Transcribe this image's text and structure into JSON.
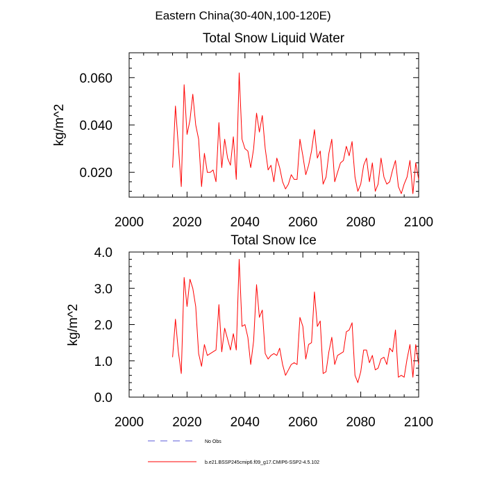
{
  "figure": {
    "main_title": "Eastern China(30-40N,100-120E)"
  },
  "chart_data": [
    {
      "type": "line",
      "title": "Total Snow Liquid Water",
      "xlabel": "",
      "ylabel": "kg/m^2",
      "xlim": [
        2000,
        2100
      ],
      "ylim": [
        0.0095,
        0.0705
      ],
      "xticks": [
        2000,
        2020,
        2040,
        2060,
        2080,
        2100
      ],
      "xtick_labels": [
        "2000",
        "2020",
        "2040",
        "2060",
        "2080",
        "2100"
      ],
      "yticks": [
        0.02,
        0.04,
        0.06
      ],
      "ytick_labels": [
        "0.020",
        "0.040",
        "0.060"
      ],
      "grid": false,
      "series": [
        {
          "name": "b.e21.BSSP245cmip6.f09_g17.CMIP6-SSP2-4.5.102",
          "color": "#ff0000",
          "x": [
            2015,
            2016,
            2017,
            2018,
            2019,
            2020,
            2021,
            2022,
            2023,
            2024,
            2025,
            2026,
            2027,
            2028,
            2029,
            2030,
            2031,
            2032,
            2033,
            2034,
            2035,
            2036,
            2037,
            2038,
            2039,
            2040,
            2041,
            2042,
            2043,
            2044,
            2045,
            2046,
            2047,
            2048,
            2049,
            2050,
            2051,
            2052,
            2053,
            2054,
            2055,
            2056,
            2057,
            2058,
            2059,
            2060,
            2061,
            2062,
            2063,
            2064,
            2065,
            2066,
            2067,
            2068,
            2069,
            2070,
            2071,
            2072,
            2073,
            2074,
            2075,
            2076,
            2077,
            2078,
            2079,
            2080,
            2081,
            2082,
            2083,
            2084,
            2085,
            2086,
            2087,
            2088,
            2089,
            2090,
            2091,
            2092,
            2093,
            2094,
            2095,
            2096,
            2097,
            2098,
            2099,
            2100
          ],
          "y": [
            0.022,
            0.048,
            0.031,
            0.014,
            0.057,
            0.036,
            0.042,
            0.053,
            0.04,
            0.034,
            0.014,
            0.028,
            0.02,
            0.02,
            0.021,
            0.016,
            0.041,
            0.022,
            0.034,
            0.026,
            0.023,
            0.035,
            0.017,
            0.062,
            0.034,
            0.03,
            0.029,
            0.022,
            0.03,
            0.045,
            0.037,
            0.044,
            0.03,
            0.021,
            0.023,
            0.016,
            0.026,
            0.022,
            0.016,
            0.013,
            0.015,
            0.019,
            0.017,
            0.017,
            0.034,
            0.027,
            0.019,
            0.023,
            0.029,
            0.038,
            0.026,
            0.029,
            0.015,
            0.018,
            0.028,
            0.034,
            0.016,
            0.02,
            0.024,
            0.025,
            0.031,
            0.027,
            0.033,
            0.018,
            0.012,
            0.015,
            0.023,
            0.026,
            0.016,
            0.024,
            0.012,
            0.015,
            0.026,
            0.018,
            0.015,
            0.016,
            0.021,
            0.025,
            0.014,
            0.011,
            0.015,
            0.018,
            0.025,
            0.011,
            0.024,
            0.017
          ]
        }
      ]
    },
    {
      "type": "line",
      "title": "Total Snow Ice",
      "xlabel": "",
      "ylabel": "kg/m^2",
      "xlim": [
        2000,
        2100
      ],
      "ylim": [
        0.0,
        4.0
      ],
      "xticks": [
        2000,
        2020,
        2040,
        2060,
        2080,
        2100
      ],
      "xtick_labels": [
        "2000",
        "2020",
        "2040",
        "2060",
        "2080",
        "2100"
      ],
      "yticks": [
        0.0,
        1.0,
        2.0,
        3.0,
        4.0
      ],
      "ytick_labels": [
        "0.0",
        "1.0",
        "2.0",
        "3.0",
        "4.0"
      ],
      "grid": false,
      "series": [
        {
          "name": "b.e21.BSSP245cmip6.f09_g17.CMIP6-SSP2-4.5.102",
          "color": "#ff0000",
          "x": [
            2015,
            2016,
            2017,
            2018,
            2019,
            2020,
            2021,
            2022,
            2023,
            2024,
            2025,
            2026,
            2027,
            2028,
            2029,
            2030,
            2031,
            2032,
            2033,
            2034,
            2035,
            2036,
            2037,
            2038,
            2039,
            2040,
            2041,
            2042,
            2043,
            2044,
            2045,
            2046,
            2047,
            2048,
            2049,
            2050,
            2051,
            2052,
            2053,
            2054,
            2055,
            2056,
            2057,
            2058,
            2059,
            2060,
            2061,
            2062,
            2063,
            2064,
            2065,
            2066,
            2067,
            2068,
            2069,
            2070,
            2071,
            2072,
            2073,
            2074,
            2075,
            2076,
            2077,
            2078,
            2079,
            2080,
            2081,
            2082,
            2083,
            2084,
            2085,
            2086,
            2087,
            2088,
            2089,
            2090,
            2091,
            2092,
            2093,
            2094,
            2095,
            2096,
            2097,
            2098,
            2099,
            2100
          ],
          "y": [
            1.1,
            2.15,
            1.25,
            0.65,
            3.3,
            2.5,
            3.25,
            3.0,
            2.5,
            1.2,
            0.85,
            1.45,
            1.15,
            1.2,
            1.25,
            1.3,
            2.55,
            1.25,
            1.9,
            1.6,
            1.3,
            1.75,
            1.3,
            3.8,
            1.95,
            2.0,
            1.65,
            0.9,
            1.55,
            3.1,
            2.2,
            2.4,
            1.2,
            1.05,
            1.15,
            1.2,
            1.15,
            1.35,
            0.9,
            0.6,
            0.75,
            0.9,
            0.95,
            0.9,
            2.2,
            1.95,
            1.05,
            1.45,
            1.5,
            2.9,
            1.95,
            2.1,
            0.65,
            0.7,
            1.25,
            1.65,
            0.9,
            1.15,
            1.2,
            1.25,
            1.8,
            1.85,
            2.05,
            0.6,
            0.4,
            0.7,
            1.3,
            1.3,
            0.95,
            1.15,
            0.75,
            0.8,
            1.05,
            1.1,
            0.9,
            1.35,
            1.25,
            1.85,
            0.55,
            0.6,
            0.55,
            1.05,
            1.45,
            0.55,
            1.45,
            0.9
          ]
        }
      ]
    }
  ],
  "legend": [
    {
      "label": "No Obs",
      "color": "#5a5ad8",
      "style": "dashed"
    },
    {
      "label": "b.e21.BSSP245cmip6.f09_g17.CMIP6-SSP2-4.5.102",
      "color": "#ff0000",
      "style": "solid"
    }
  ]
}
